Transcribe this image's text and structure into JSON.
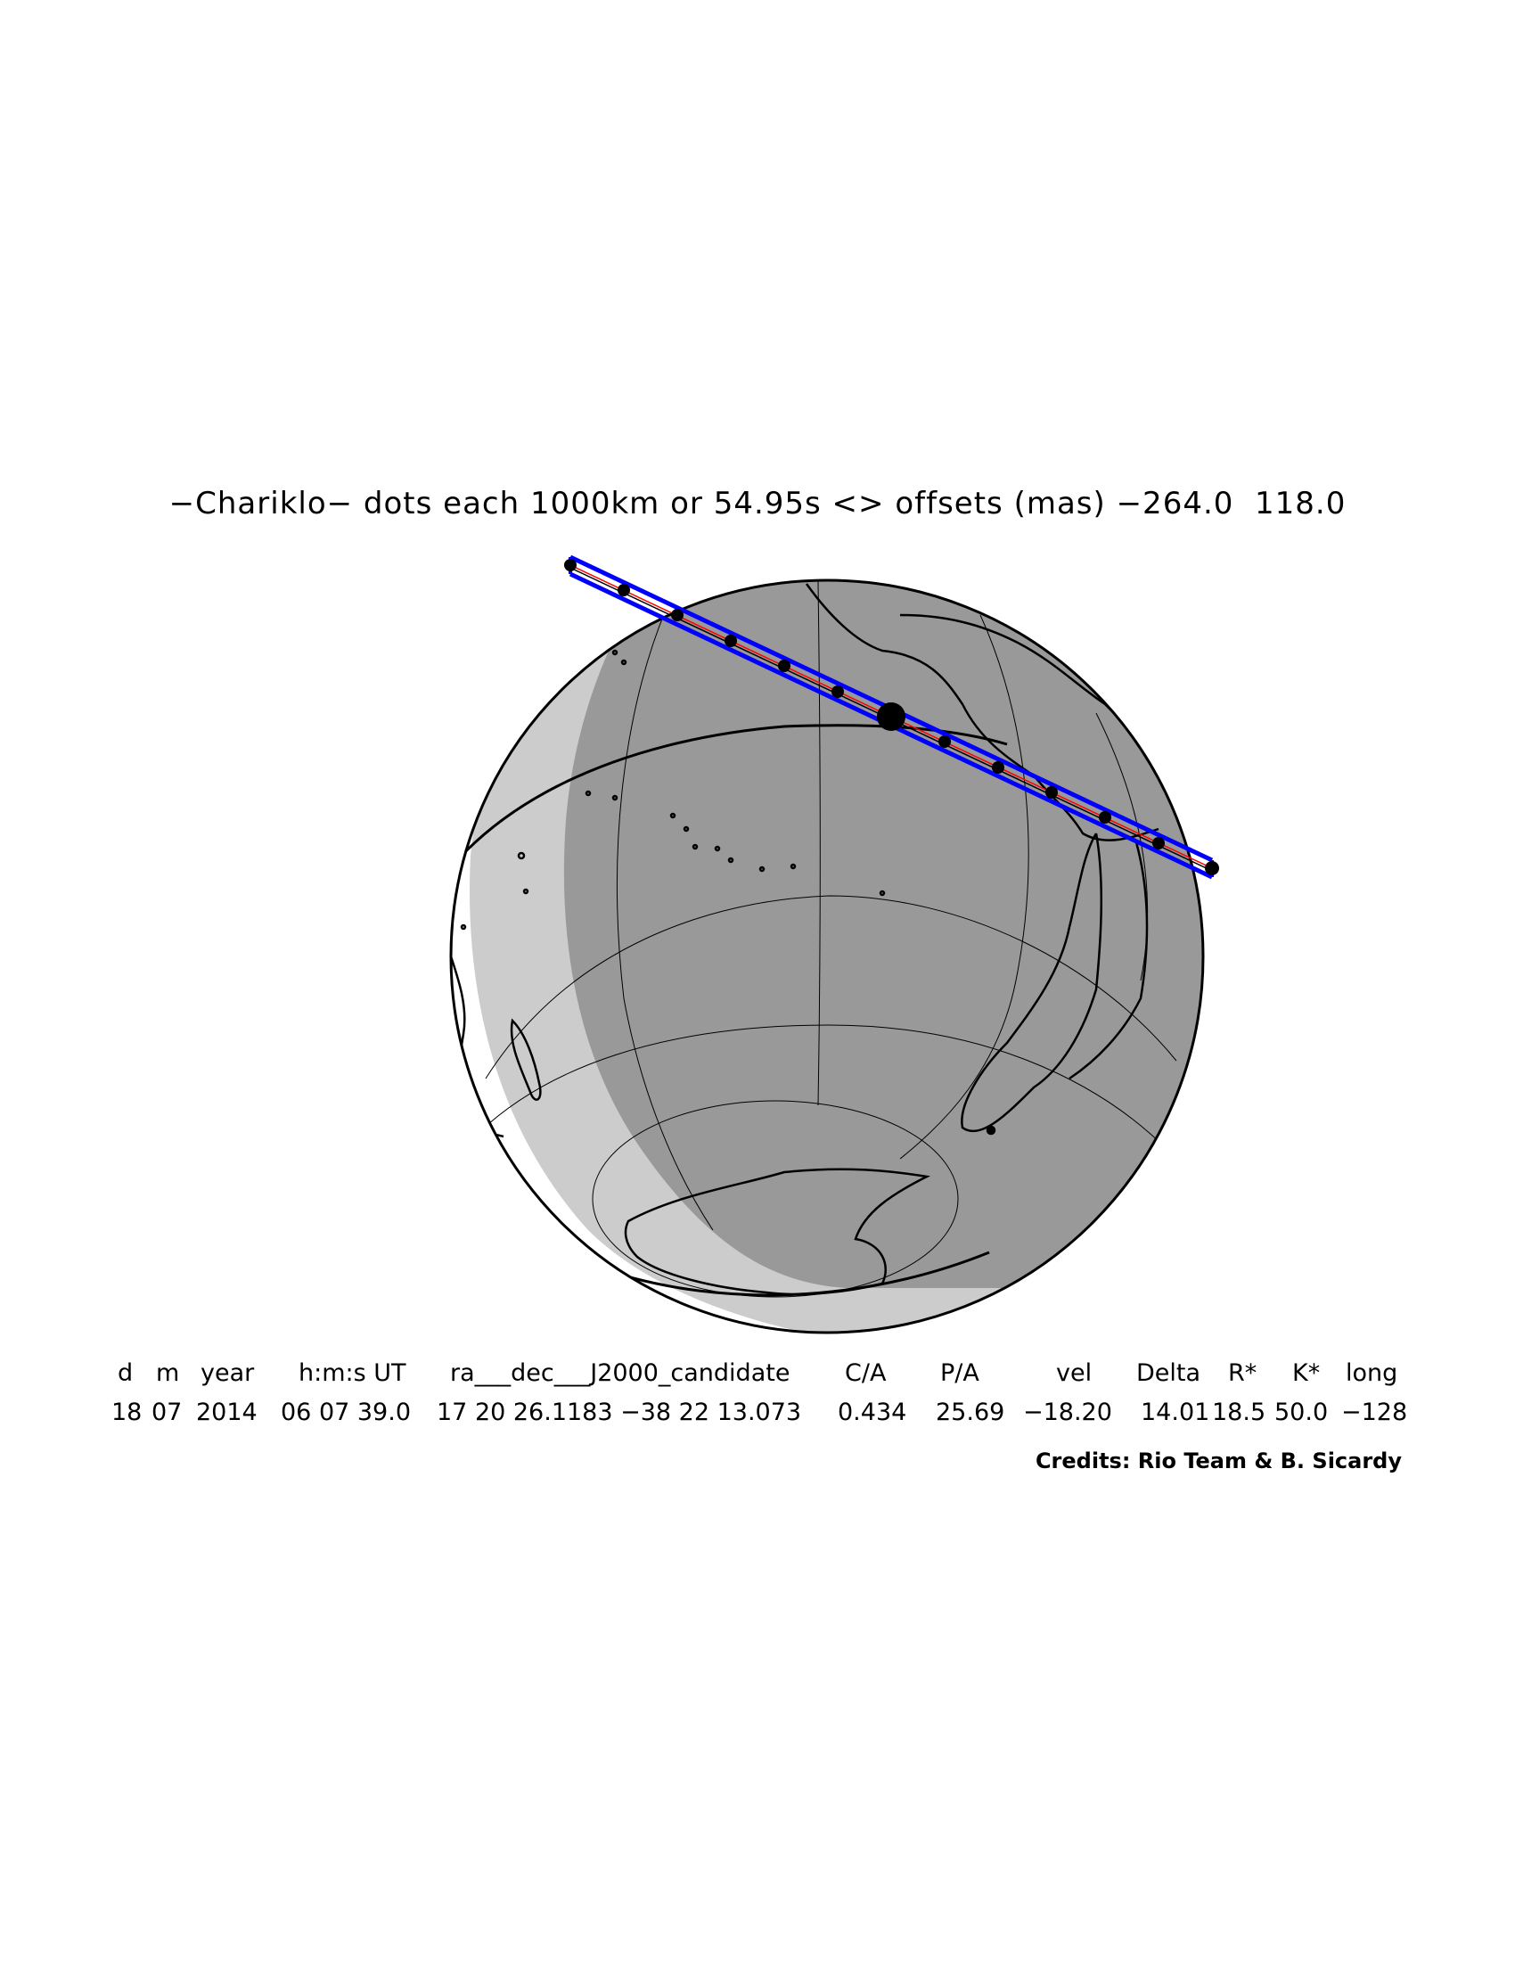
{
  "title": "−Chariklo− dots each 1000km or 54.95s <> offsets (mas) −264.0  118.0",
  "table": {
    "columns": [
      {
        "header": "d",
        "value": "18"
      },
      {
        "header": "m",
        "value": "07"
      },
      {
        "header": "year",
        "value": "2014"
      },
      {
        "header": "h:m:s UT",
        "value": "06 07 39.0"
      },
      {
        "header": "ra___dec___J2000_candidate",
        "value": "17 20 26.1183 −38 22 13.073"
      },
      {
        "header": "C/A",
        "value": "0.434"
      },
      {
        "header": "P/A",
        "value": "25.69"
      },
      {
        "header": "vel",
        "value": "−18.20"
      },
      {
        "header": "Delta",
        "value": "14.01"
      },
      {
        "header": "R*",
        "value": "18.5"
      },
      {
        "header": "K*",
        "value": "50.0"
      },
      {
        "header": "long",
        "value": "−128"
      }
    ]
  },
  "credits": "Credits: Rio Team & B. Sicardy",
  "colors": {
    "night": "#999999",
    "twilight": "#cccccc",
    "day": "#ffffff",
    "path_limits": "#0000ff",
    "central_line": "#ff0000",
    "outline": "#000000"
  },
  "path": {
    "dot_spacing_km": 1000,
    "dot_interval_s": 54.95,
    "offset_ra_mas": -264.0,
    "offset_dec_mas": 118.0
  }
}
